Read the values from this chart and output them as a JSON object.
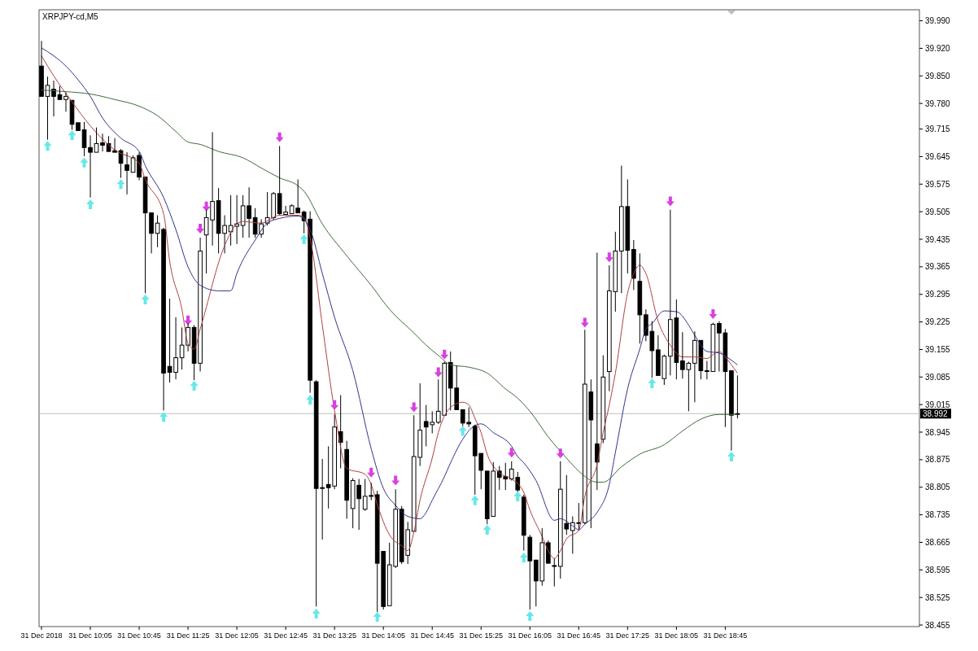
{
  "chart_data": {
    "type": "candlestick",
    "title": "XRPJPY-cd,M5",
    "x": [
      "2018-12-31T09:25",
      "2018-12-31T09:30",
      "2018-12-31T09:35",
      "2018-12-31T09:40",
      "2018-12-31T09:45",
      "2018-12-31T09:50",
      "2018-12-31T09:55",
      "2018-12-31T10:00",
      "2018-12-31T10:05",
      "2018-12-31T10:10",
      "2018-12-31T10:15",
      "2018-12-31T10:20",
      "2018-12-31T10:25",
      "2018-12-31T10:30",
      "2018-12-31T10:35",
      "2018-12-31T10:40",
      "2018-12-31T10:45",
      "2018-12-31T10:50",
      "2018-12-31T10:55",
      "2018-12-31T11:00",
      "2018-12-31T11:05",
      "2018-12-31T11:10",
      "2018-12-31T11:15",
      "2018-12-31T11:20",
      "2018-12-31T11:25",
      "2018-12-31T11:30",
      "2018-12-31T11:35",
      "2018-12-31T11:40",
      "2018-12-31T11:45",
      "2018-12-31T11:50",
      "2018-12-31T11:55",
      "2018-12-31T12:00",
      "2018-12-31T12:05",
      "2018-12-31T12:10",
      "2018-12-31T12:15",
      "2018-12-31T12:20",
      "2018-12-31T12:25",
      "2018-12-31T12:30",
      "2018-12-31T12:35",
      "2018-12-31T12:40",
      "2018-12-31T12:45",
      "2018-12-31T12:50",
      "2018-12-31T12:55",
      "2018-12-31T13:00",
      "2018-12-31T13:05",
      "2018-12-31T13:10",
      "2018-12-31T13:15",
      "2018-12-31T13:20",
      "2018-12-31T13:25",
      "2018-12-31T13:30",
      "2018-12-31T13:35",
      "2018-12-31T13:40",
      "2018-12-31T13:45",
      "2018-12-31T13:50",
      "2018-12-31T13:55",
      "2018-12-31T14:00",
      "2018-12-31T14:05",
      "2018-12-31T14:10",
      "2018-12-31T14:15",
      "2018-12-31T14:20",
      "2018-12-31T14:25",
      "2018-12-31T14:30",
      "2018-12-31T14:35",
      "2018-12-31T14:40",
      "2018-12-31T14:45",
      "2018-12-31T14:50",
      "2018-12-31T14:55",
      "2018-12-31T15:00",
      "2018-12-31T15:05",
      "2018-12-31T15:10",
      "2018-12-31T15:15",
      "2018-12-31T15:20",
      "2018-12-31T15:25",
      "2018-12-31T15:30",
      "2018-12-31T15:35",
      "2018-12-31T15:40",
      "2018-12-31T15:45",
      "2018-12-31T15:50",
      "2018-12-31T15:55",
      "2018-12-31T16:00",
      "2018-12-31T16:05",
      "2018-12-31T16:10",
      "2018-12-31T16:15",
      "2018-12-31T16:20",
      "2018-12-31T16:25",
      "2018-12-31T16:30",
      "2018-12-31T16:35",
      "2018-12-31T16:40",
      "2018-12-31T16:45",
      "2018-12-31T16:50",
      "2018-12-31T16:55",
      "2018-12-31T17:00",
      "2018-12-31T17:05",
      "2018-12-31T17:10",
      "2018-12-31T17:15",
      "2018-12-31T17:20",
      "2018-12-31T17:25",
      "2018-12-31T17:30",
      "2018-12-31T17:35",
      "2018-12-31T17:40",
      "2018-12-31T17:45",
      "2018-12-31T17:50",
      "2018-12-31T17:55",
      "2018-12-31T18:00",
      "2018-12-31T18:05",
      "2018-12-31T18:10",
      "2018-12-31T18:15",
      "2018-12-31T18:20",
      "2018-12-31T18:25",
      "2018-12-31T18:30",
      "2018-12-31T18:35",
      "2018-12-31T18:40",
      "2018-12-31T18:45",
      "2018-12-31T18:50",
      "2018-12-31T18:55"
    ],
    "ohlc": [
      [
        39.875,
        39.939,
        39.798,
        39.798
      ],
      [
        39.798,
        39.848,
        39.688,
        39.826
      ],
      [
        39.816,
        39.838,
        39.747,
        39.798
      ],
      [
        39.802,
        39.824,
        39.788,
        39.79
      ],
      [
        39.79,
        39.808,
        39.759,
        39.798
      ],
      [
        39.788,
        39.788,
        39.713,
        39.727
      ],
      [
        39.731,
        39.733,
        39.709,
        39.711
      ],
      [
        39.713,
        39.733,
        39.646,
        39.668
      ],
      [
        39.668,
        39.699,
        39.541,
        39.656
      ],
      [
        39.656,
        39.719,
        39.654,
        39.678
      ],
      [
        39.68,
        39.703,
        39.658,
        39.674
      ],
      [
        39.678,
        39.697,
        39.656,
        39.658
      ],
      [
        39.66,
        39.692,
        39.656,
        39.656
      ],
      [
        39.66,
        39.664,
        39.591,
        39.628
      ],
      [
        39.624,
        39.656,
        39.549,
        39.61
      ],
      [
        39.605,
        39.648,
        39.605,
        39.642
      ],
      [
        39.648,
        39.656,
        39.585,
        39.593
      ],
      [
        39.593,
        39.593,
        39.298,
        39.502
      ],
      [
        39.502,
        39.502,
        39.399,
        39.45
      ],
      [
        39.45,
        39.496,
        39.415,
        39.476
      ],
      [
        39.46,
        39.464,
        39.0,
        39.095
      ],
      [
        39.112,
        39.284,
        39.071,
        39.097
      ],
      [
        39.097,
        39.237,
        39.079,
        39.134
      ],
      [
        39.134,
        39.211,
        39.104,
        39.166
      ],
      [
        39.166,
        39.221,
        39.15,
        39.211
      ],
      [
        39.211,
        39.217,
        39.077,
        39.12
      ],
      [
        39.12,
        39.439,
        39.099,
        39.405
      ],
      [
        39.446,
        39.51,
        39.348,
        39.49
      ],
      [
        39.484,
        39.707,
        39.419,
        39.531
      ],
      [
        39.533,
        39.565,
        39.399,
        39.45
      ],
      [
        39.45,
        39.496,
        39.399,
        39.47
      ],
      [
        39.454,
        39.547,
        39.419,
        39.47
      ],
      [
        39.468,
        39.547,
        39.423,
        39.474
      ],
      [
        39.47,
        39.547,
        39.439,
        39.52
      ],
      [
        39.52,
        39.567,
        39.439,
        39.488
      ],
      [
        39.49,
        39.514,
        39.439,
        39.448
      ],
      [
        39.448,
        39.486,
        39.439,
        39.474
      ],
      [
        39.476,
        39.555,
        39.47,
        39.49
      ],
      [
        39.49,
        39.555,
        39.484,
        39.551
      ],
      [
        39.551,
        39.672,
        39.496,
        39.5
      ],
      [
        39.498,
        39.52,
        39.496,
        39.504
      ],
      [
        39.5,
        39.524,
        39.498,
        39.52
      ],
      [
        39.514,
        39.587,
        39.5,
        39.502
      ],
      [
        39.504,
        39.508,
        39.45,
        39.482
      ],
      [
        39.486,
        39.506,
        39.045,
        39.077
      ],
      [
        39.073,
        39.077,
        38.502,
        38.802
      ],
      [
        38.802,
        38.877,
        38.672,
        38.804
      ],
      [
        38.812,
        38.909,
        38.751,
        38.804
      ],
      [
        38.808,
        38.99,
        38.8,
        38.958
      ],
      [
        38.946,
        39.039,
        38.853,
        38.919
      ],
      [
        38.901,
        38.923,
        38.725,
        38.772
      ],
      [
        38.751,
        38.828,
        38.701,
        38.822
      ],
      [
        38.81,
        38.826,
        38.697,
        38.776
      ],
      [
        38.749,
        38.826,
        38.745,
        38.782
      ],
      [
        38.784,
        38.816,
        38.772,
        38.782
      ],
      [
        38.786,
        38.796,
        38.488,
        38.612
      ],
      [
        38.642,
        38.642,
        38.494,
        38.502
      ],
      [
        38.504,
        38.664,
        38.502,
        38.608
      ],
      [
        38.604,
        38.8,
        38.6,
        38.749
      ],
      [
        38.749,
        38.757,
        38.61,
        38.616
      ],
      [
        38.632,
        38.717,
        38.61,
        38.697
      ],
      [
        38.693,
        38.988,
        38.691,
        38.883
      ],
      [
        38.881,
        39.069,
        38.859,
        38.95
      ],
      [
        38.972,
        39.014,
        38.909,
        38.958
      ],
      [
        38.964,
        38.998,
        38.942,
        38.97
      ],
      [
        38.97,
        39.079,
        38.966,
        38.998
      ],
      [
        38.988,
        39.124,
        38.986,
        39.12
      ],
      [
        39.122,
        39.15,
        39.0,
        39.057
      ],
      [
        39.057,
        39.114,
        39.0,
        39.002
      ],
      [
        39.002,
        39.004,
        38.96,
        38.968
      ],
      [
        38.97,
        39.008,
        38.958,
        38.966
      ],
      [
        38.96,
        38.964,
        38.786,
        38.885
      ],
      [
        38.891,
        38.893,
        38.8,
        38.848
      ],
      [
        38.846,
        38.846,
        38.711,
        38.725
      ],
      [
        38.731,
        38.869,
        38.729,
        38.846
      ],
      [
        38.846,
        38.859,
        38.798,
        38.83
      ],
      [
        38.832,
        38.867,
        38.798,
        38.826
      ],
      [
        38.826,
        38.871,
        38.822,
        38.851
      ],
      [
        38.83,
        38.844,
        38.792,
        38.798
      ],
      [
        38.78,
        38.786,
        38.644,
        38.683
      ],
      [
        38.678,
        38.684,
        38.494,
        38.618
      ],
      [
        38.62,
        38.62,
        38.502,
        38.567
      ],
      [
        38.567,
        38.701,
        38.555,
        38.664
      ],
      [
        38.664,
        38.67,
        38.61,
        38.612
      ],
      [
        38.604,
        38.624,
        38.553,
        38.606
      ],
      [
        38.604,
        38.871,
        38.573,
        38.8
      ],
      [
        38.713,
        38.836,
        38.684,
        38.699
      ],
      [
        38.695,
        38.731,
        38.636,
        38.715
      ],
      [
        38.713,
        38.765,
        38.695,
        38.715
      ],
      [
        38.715,
        39.205,
        38.711,
        39.067
      ],
      [
        39.047,
        39.079,
        38.701,
        38.976
      ],
      [
        38.915,
        39.401,
        38.798,
        38.869
      ],
      [
        38.927,
        39.14,
        38.917,
        39.085
      ],
      [
        39.099,
        39.369,
        39.049,
        39.304
      ],
      [
        39.302,
        39.454,
        39.251,
        39.405
      ],
      [
        39.405,
        39.622,
        39.298,
        39.518
      ],
      [
        39.518,
        39.587,
        39.348,
        39.407
      ],
      [
        39.409,
        39.433,
        39.306,
        39.336
      ],
      [
        39.328,
        39.399,
        39.17,
        39.243
      ],
      [
        39.243,
        39.257,
        39.176,
        39.191
      ],
      [
        39.201,
        39.227,
        39.083,
        39.152
      ],
      [
        39.154,
        39.191,
        39.087,
        39.089
      ],
      [
        39.081,
        39.142,
        39.065,
        39.138
      ],
      [
        39.138,
        39.51,
        39.089,
        39.231
      ],
      [
        39.235,
        39.282,
        39.079,
        39.122
      ],
      [
        39.126,
        39.199,
        39.081,
        39.104
      ],
      [
        39.104,
        39.124,
        38.998,
        39.12
      ],
      [
        39.12,
        39.201,
        39.021,
        39.178
      ],
      [
        39.178,
        39.18,
        39.079,
        39.101
      ],
      [
        39.101,
        39.126,
        39.079,
        39.099
      ],
      [
        39.099,
        39.223,
        39.097,
        39.219
      ],
      [
        39.221,
        39.227,
        39.099,
        39.197
      ],
      [
        39.197,
        39.207,
        38.958,
        39.099
      ],
      [
        39.101,
        39.101,
        38.898,
        38.988
      ],
      [
        38.99,
        39.089,
        38.98,
        38.992
      ]
    ],
    "series": [
      {
        "type": "line",
        "color": "#b04040",
        "x": [
          "2018-12-31T09:25",
          "2018-12-31T09:35",
          "2018-12-31T09:50",
          "2018-12-31T10:05",
          "2018-12-31T10:25",
          "2018-12-31T10:45",
          "2018-12-31T10:50",
          "2018-12-31T11:05",
          "2018-12-31T11:10",
          "2018-12-31T11:20",
          "2018-12-31T11:25",
          "2018-12-31T11:30",
          "2018-12-31T11:35",
          "2018-12-31T11:55",
          "2018-12-31T12:05",
          "2018-12-31T12:10",
          "2018-12-31T12:25",
          "2018-12-31T12:40",
          "2018-12-31T12:55",
          "2018-12-31T13:00",
          "2018-12-31T13:05",
          "2018-12-31T13:15",
          "2018-12-31T13:25",
          "2018-12-31T13:35",
          "2018-12-31T13:50",
          "2018-12-31T13:55",
          "2018-12-31T14:00",
          "2018-12-31T14:10",
          "2018-12-31T14:20",
          "2018-12-31T14:25",
          "2018-12-31T14:30",
          "2018-12-31T14:35",
          "2018-12-31T14:45",
          "2018-12-31T14:50",
          "2018-12-31T15:00",
          "2018-12-31T15:10",
          "2018-12-31T15:15",
          "2018-12-31T15:20",
          "2018-12-31T15:25",
          "2018-12-31T15:30",
          "2018-12-31T15:40",
          "2018-12-31T15:50",
          "2018-12-31T16:00",
          "2018-12-31T16:05",
          "2018-12-31T16:15",
          "2018-12-31T16:20",
          "2018-12-31T16:25",
          "2018-12-31T16:30",
          "2018-12-31T16:35",
          "2018-12-31T16:45",
          "2018-12-31T16:50",
          "2018-12-31T17:00",
          "2018-12-31T17:05",
          "2018-12-31T17:10",
          "2018-12-31T17:15",
          "2018-12-31T17:25",
          "2018-12-31T17:30",
          "2018-12-31T17:35",
          "2018-12-31T17:40",
          "2018-12-31T17:50",
          "2018-12-31T18:00",
          "2018-12-31T18:10",
          "2018-12-31T18:20",
          "2018-12-31T18:30",
          "2018-12-31T18:35",
          "2018-12-31T18:40",
          "2018-12-31T18:45",
          "2018-12-31T18:50",
          "2018-12-31T18:55"
        ],
        "values": [
          39.901,
          39.85,
          39.784,
          39.723,
          39.662,
          39.628,
          39.587,
          39.5,
          39.379,
          39.257,
          39.17,
          39.156,
          39.207,
          39.419,
          39.474,
          39.48,
          39.476,
          39.496,
          39.496,
          39.49,
          39.439,
          39.217,
          39.0,
          38.853,
          38.838,
          38.812,
          38.761,
          38.684,
          38.656,
          38.644,
          38.691,
          38.772,
          38.879,
          38.944,
          39.008,
          39.021,
          39.014,
          38.98,
          38.944,
          38.889,
          38.842,
          38.826,
          38.792,
          38.747,
          38.68,
          38.644,
          38.624,
          38.644,
          38.674,
          38.695,
          38.782,
          38.863,
          38.944,
          39.014,
          39.095,
          39.298,
          39.348,
          39.369,
          39.348,
          39.227,
          39.166,
          39.136,
          39.136,
          39.132,
          39.142,
          39.15,
          39.136,
          39.116,
          39.095
        ]
      },
      {
        "type": "line",
        "color": "#33338a",
        "x": [
          "2018-12-31T09:25",
          "2018-12-31T09:35",
          "2018-12-31T09:45",
          "2018-12-31T09:55",
          "2018-12-31T10:05",
          "2018-12-31T10:15",
          "2018-12-31T10:30",
          "2018-12-31T10:45",
          "2018-12-31T10:50",
          "2018-12-31T11:05",
          "2018-12-31T11:15",
          "2018-12-31T11:25",
          "2018-12-31T11:35",
          "2018-12-31T11:50",
          "2018-12-31T12:00",
          "2018-12-31T12:05",
          "2018-12-31T12:20",
          "2018-12-31T12:30",
          "2018-12-31T12:40",
          "2018-12-31T12:55",
          "2018-12-31T13:05",
          "2018-12-31T13:15",
          "2018-12-31T13:25",
          "2018-12-31T13:40",
          "2018-12-31T13:55",
          "2018-12-31T14:05",
          "2018-12-31T14:15",
          "2018-12-31T14:25",
          "2018-12-31T14:35",
          "2018-12-31T14:40",
          "2018-12-31T14:45",
          "2018-12-31T14:55",
          "2018-12-31T15:00",
          "2018-12-31T15:10",
          "2018-12-31T15:20",
          "2018-12-31T15:25",
          "2018-12-31T15:35",
          "2018-12-31T15:50",
          "2018-12-31T15:55",
          "2018-12-31T16:00",
          "2018-12-31T16:10",
          "2018-12-31T16:25",
          "2018-12-31T16:30",
          "2018-12-31T16:40",
          "2018-12-31T16:45",
          "2018-12-31T16:50",
          "2018-12-31T17:00",
          "2018-12-31T17:10",
          "2018-12-31T17:15",
          "2018-12-31T17:25",
          "2018-12-31T17:35",
          "2018-12-31T17:40",
          "2018-12-31T17:45",
          "2018-12-31T17:55",
          "2018-12-31T18:05",
          "2018-12-31T18:15",
          "2018-12-31T18:20",
          "2018-12-31T18:30",
          "2018-12-31T18:40",
          "2018-12-31T18:45",
          "2018-12-31T18:55"
        ],
        "values": [
          39.921,
          39.901,
          39.875,
          39.84,
          39.798,
          39.743,
          39.692,
          39.658,
          39.622,
          39.541,
          39.46,
          39.365,
          39.318,
          39.304,
          39.304,
          39.348,
          39.433,
          39.476,
          39.488,
          39.494,
          39.46,
          39.348,
          39.237,
          39.101,
          38.903,
          38.802,
          38.759,
          38.731,
          38.725,
          38.741,
          38.772,
          38.832,
          38.867,
          38.927,
          38.962,
          38.966,
          38.944,
          38.909,
          38.883,
          38.867,
          38.822,
          38.721,
          38.725,
          38.707,
          38.697,
          38.711,
          38.741,
          38.812,
          38.893,
          39.055,
          39.156,
          39.207,
          39.221,
          39.253,
          39.251,
          39.217,
          39.191,
          39.15,
          39.146,
          39.138,
          39.116
        ]
      },
      {
        "type": "line",
        "color": "#3f6b3a",
        "x": [
          "2018-12-31T09:25",
          "2018-12-31T09:45",
          "2018-12-31T10:05",
          "2018-12-31T10:25",
          "2018-12-31T10:45",
          "2018-12-31T11:00",
          "2018-12-31T11:15",
          "2018-12-31T11:25",
          "2018-12-31T11:35",
          "2018-12-31T11:50",
          "2018-12-31T12:10",
          "2018-12-31T12:25",
          "2018-12-31T12:40",
          "2018-12-31T12:55",
          "2018-12-31T13:00",
          "2018-12-31T13:15",
          "2018-12-31T13:35",
          "2018-12-31T13:55",
          "2018-12-31T14:10",
          "2018-12-31T14:30",
          "2018-12-31T14:40",
          "2018-12-31T14:50",
          "2018-12-31T15:00",
          "2018-12-31T15:15",
          "2018-12-31T15:30",
          "2018-12-31T15:45",
          "2018-12-31T15:55",
          "2018-12-31T16:05",
          "2018-12-31T16:20",
          "2018-12-31T16:35",
          "2018-12-31T16:45",
          "2018-12-31T17:00",
          "2018-12-31T17:05",
          "2018-12-31T17:20",
          "2018-12-31T17:35",
          "2018-12-31T17:55",
          "2018-12-31T18:10",
          "2018-12-31T18:25",
          "2018-12-31T18:40",
          "2018-12-31T18:50",
          "2018-12-31T18:55"
        ],
        "values": [
          39.814,
          39.81,
          39.804,
          39.79,
          39.773,
          39.749,
          39.709,
          39.682,
          39.676,
          39.658,
          39.642,
          39.616,
          39.591,
          39.571,
          39.557,
          39.474,
          39.393,
          39.318,
          39.257,
          39.197,
          39.166,
          39.14,
          39.116,
          39.11,
          39.095,
          39.055,
          39.031,
          38.998,
          38.933,
          38.879,
          38.846,
          38.818,
          38.818,
          38.857,
          38.889,
          38.913,
          38.948,
          38.978,
          38.99,
          38.99,
          38.99
        ]
      },
      {
        "type": "scatter",
        "color": "#66e8e8",
        "marker": "triangle",
        "x": [
          "2018-12-31T09:30",
          "2018-12-31T09:50",
          "2018-12-31T10:00",
          "2018-12-31T10:05",
          "2018-12-31T10:30",
          "2018-12-31T10:50",
          "2018-12-31T11:05",
          "2018-12-31T11:30",
          "2018-12-31T13:00",
          "2018-12-31T13:05",
          "2018-12-31T13:10",
          "2018-12-31T14:00",
          "2018-12-31T15:10",
          "2018-12-31T15:20",
          "2018-12-31T15:30",
          "2018-12-31T15:55",
          "2018-12-31T16:00",
          "2018-12-31T16:05",
          "2018-12-31T17:45",
          "2018-12-31T18:50"
        ],
        "values": [
          39.672,
          39.699,
          39.63,
          39.524,
          39.575,
          39.282,
          38.984,
          39.063,
          39.435,
          39.027,
          38.484,
          38.476,
          38.948,
          38.772,
          38.697,
          38.782,
          38.626,
          38.478,
          39.069,
          38.883
        ]
      },
      {
        "type": "scatter",
        "color": "#d840e0",
        "marker": "triangle",
        "x": [
          "2018-12-31T11:25",
          "2018-12-31T11:35",
          "2018-12-31T11:40",
          "2018-12-31T12:40",
          "2018-12-31T13:25",
          "2018-12-31T13:55",
          "2018-12-31T14:15",
          "2018-12-31T14:30",
          "2018-12-31T14:50",
          "2018-12-31T14:55",
          "2018-12-31T15:50",
          "2018-12-31T16:30",
          "2018-12-31T16:50",
          "2018-12-31T17:10",
          "2018-12-31T18:00",
          "2018-12-31T18:35"
        ],
        "values": [
          39.229,
          39.462,
          39.518,
          39.694,
          39.014,
          38.842,
          38.822,
          39.008,
          39.097,
          39.142,
          38.893,
          38.891,
          39.223,
          39.389,
          39.531,
          39.245
        ]
      }
    ],
    "xlim": [
      "2018-12-31T09:23",
      "2018-12-31T21:24"
    ],
    "xticks": [
      {
        "value": "2018-12-31T09:25",
        "label": "31 Dec 2018"
      },
      {
        "value": "2018-12-31T10:05",
        "label": "31 Dec 10:05"
      },
      {
        "value": "2018-12-31T10:45",
        "label": "31 Dec 10:45"
      },
      {
        "value": "2018-12-31T11:25",
        "label": "31 Dec 11:25"
      },
      {
        "value": "2018-12-31T12:05",
        "label": "31 Dec 12:05"
      },
      {
        "value": "2018-12-31T12:45",
        "label": "31 Dec 12:45"
      },
      {
        "value": "2018-12-31T13:25",
        "label": "31 Dec 13:25"
      },
      {
        "value": "2018-12-31T14:05",
        "label": "31 Dec 14:05"
      },
      {
        "value": "2018-12-31T14:45",
        "label": "31 Dec 14:45"
      },
      {
        "value": "2018-12-31T15:25",
        "label": "31 Dec 15:25"
      },
      {
        "value": "2018-12-31T16:05",
        "label": "31 Dec 16:05"
      },
      {
        "value": "2018-12-31T16:45",
        "label": "31 Dec 16:45"
      },
      {
        "value": "2018-12-31T17:25",
        "label": "31 Dec 17:25"
      },
      {
        "value": "2018-12-31T18:05",
        "label": "31 Dec 18:05"
      },
      {
        "value": "2018-12-31T18:45",
        "label": "31 Dec 18:45"
      }
    ],
    "ylim": [
      38.451,
      40.018
    ],
    "yticks": [
      {
        "value": 39.99,
        "label": "39.990"
      },
      {
        "value": 39.92,
        "label": "39.920"
      },
      {
        "value": 39.85,
        "label": "39.850"
      },
      {
        "value": 39.78,
        "label": "39.780"
      },
      39.715,
      39.645,
      39.575,
      39.505,
      39.435,
      39.365,
      39.295,
      39.225,
      39.155,
      39.085,
      39.015,
      38.945,
      38.875,
      38.805,
      38.735,
      38.665,
      38.595,
      38.525,
      38.455
    ],
    "ref_lines": [
      {
        "axis": "y",
        "value": 38.992,
        "label": "38.992",
        "color": "#c0c0c0"
      }
    ]
  }
}
